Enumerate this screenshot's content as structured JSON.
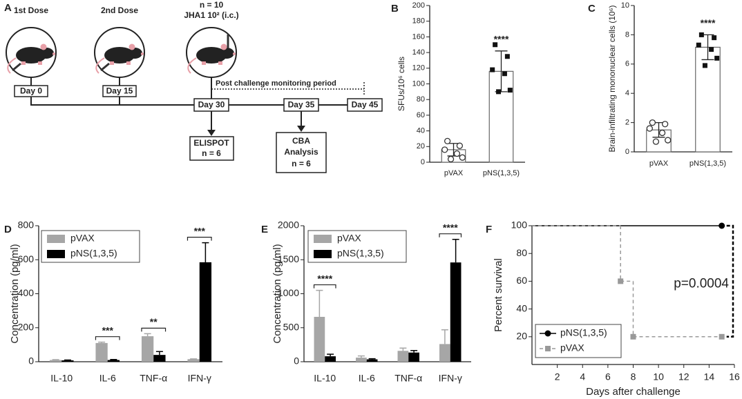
{
  "diagram": {
    "panel": "A",
    "doses": [
      {
        "label": "1st Dose",
        "day": "Day 0"
      },
      {
        "label": "2nd Dose",
        "day": "Day 15"
      }
    ],
    "challenge": {
      "n": "n = 10",
      "label": "JHA1 10² (i.c.)",
      "day": "Day 30"
    },
    "days": [
      "Day 35",
      "Day 45"
    ],
    "monitoring": "Post challenge monitoring period",
    "elispot": [
      "ELISPOT",
      "n = 6"
    ],
    "cba": [
      "CBA",
      "Analysis",
      "n = 6"
    ]
  },
  "chart_data": [
    {
      "panel": "B",
      "type": "bar",
      "ylabel": "SFUs/10⁶ cells",
      "categories": [
        "pVAX",
        "pNS(1,3,5)"
      ],
      "values": [
        16,
        116
      ],
      "errors": [
        8,
        26
      ],
      "points": [
        [
          27,
          21,
          16,
          11,
          6,
          4
        ],
        [
          150,
          135,
          118,
          113,
          92,
          90
        ]
      ],
      "markers": [
        "open-circle",
        "square"
      ],
      "color": "#ffffff",
      "ylim": [
        0,
        200
      ],
      "yticks": [
        0,
        20,
        40,
        60,
        80,
        100,
        120,
        140,
        160,
        180,
        200
      ],
      "annotations": [
        null,
        "****"
      ]
    },
    {
      "panel": "C",
      "type": "bar",
      "ylabel": "Brain-infiltrating mononuclear cells (10⁶)",
      "categories": [
        "pVAX",
        "pNS(1,3,5)"
      ],
      "values": [
        1.5,
        7.15
      ],
      "errors": [
        0.5,
        0.85
      ],
      "points": [
        [
          2.0,
          1.9,
          1.6,
          1.3,
          0.8,
          0.7
        ],
        [
          8.0,
          7.8,
          7.3,
          7.0,
          6.4,
          5.9
        ]
      ],
      "markers": [
        "open-circle",
        "square"
      ],
      "color": "#ffffff",
      "ylim": [
        0,
        10
      ],
      "yticks": [
        0,
        2,
        4,
        6,
        8,
        10
      ],
      "annotations": [
        null,
        "****"
      ]
    },
    {
      "panel": "D",
      "type": "grouped_bar",
      "ylabel": "Concentration (pg/ml)",
      "categories": [
        "IL-10",
        "IL-6",
        "TNF-α",
        "IFN-γ"
      ],
      "series": [
        {
          "name": "pVAX",
          "color": "#a6a6a6",
          "values": [
            10,
            110,
            150,
            15
          ],
          "errors": [
            2,
            5,
            15,
            2
          ]
        },
        {
          "name": "pNS(1,3,5)",
          "color": "#000000",
          "values": [
            8,
            10,
            40,
            585
          ],
          "errors": [
            2,
            3,
            20,
            115
          ]
        }
      ],
      "ylim": [
        0,
        800
      ],
      "yticks": [
        0,
        200,
        400,
        600,
        800
      ],
      "annotations": [
        null,
        "***",
        "**",
        "***"
      ]
    },
    {
      "panel": "E",
      "type": "grouped_bar",
      "ylabel": "Concentration (pg/ml)",
      "categories": [
        "IL-10",
        "IL-6",
        "TNF-α",
        "IFN-γ"
      ],
      "series": [
        {
          "name": "pVAX",
          "color": "#a6a6a6",
          "values": [
            660,
            60,
            160,
            260
          ],
          "errors": [
            390,
            25,
            40,
            210
          ]
        },
        {
          "name": "pNS(1,3,5)",
          "color": "#000000",
          "values": [
            80,
            35,
            135,
            1460
          ],
          "errors": [
            30,
            10,
            30,
            340
          ]
        }
      ],
      "ylim": [
        0,
        2000
      ],
      "yticks": [
        0,
        500,
        1000,
        1500,
        2000
      ],
      "annotations": [
        "****",
        null,
        null,
        "****"
      ]
    },
    {
      "panel": "F",
      "type": "line",
      "step": true,
      "xlabel": "Days after challenge",
      "ylabel": "Percent survival",
      "series": [
        {
          "name": "pNS(1,3,5)",
          "color": "#000000",
          "marker": "circle",
          "linestyle": "solid",
          "x": [
            0,
            15
          ],
          "values": [
            100,
            100
          ]
        },
        {
          "name": "pVAX",
          "color": "#999999",
          "marker": "square",
          "linestyle": "dashed",
          "x": [
            0,
            7,
            8,
            15
          ],
          "values": [
            100,
            60,
            20,
            20
          ]
        }
      ],
      "xlim": [
        0,
        16
      ],
      "xticks": [
        2,
        4,
        6,
        8,
        10,
        12,
        14,
        16
      ],
      "ylim": [
        0,
        100
      ],
      "yticks": [
        20,
        40,
        60,
        80,
        100
      ],
      "annotation": "p=0.0004"
    }
  ]
}
